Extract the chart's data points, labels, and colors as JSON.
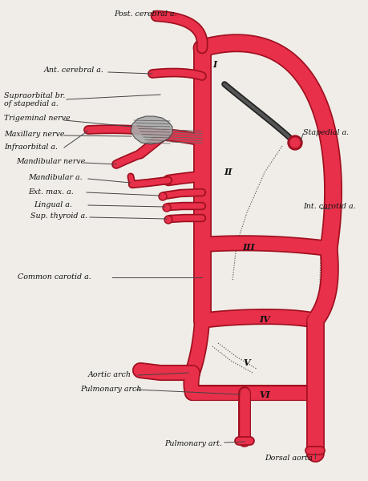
{
  "bg_color": "#f0ede8",
  "artery_color": "#e8304a",
  "artery_edge": "#a01020",
  "nerve_fill": "#999999",
  "nerve_edge": "#555555",
  "text_color": "#111111",
  "line_color": "#555555",
  "labels": {
    "post_cerebral": "Post. cerebral a.",
    "ant_cerebral": "Ant. cerebral a.",
    "supraorbital1": "Supraorbital br.",
    "supraorbital2": "of stapedial a.",
    "trigeminal": "Trigeminal nerve",
    "maxillary": "Maxillary nerve",
    "infraorbital": "Infraorbital a.",
    "mandibular_nerve": "Mandibular nerve",
    "mandibular_a": "Mandibular a.",
    "ext_max": "Ext. max. a.",
    "lingual": "Lingual a.",
    "sup_thyroid": "Sup. thyroid a.",
    "common_carotid": "Common carotid a.",
    "stapedial": "Stapedial a.",
    "int_carotid": "Int. carotid a.",
    "aortic_arch": "Aortic arch",
    "pulmonary_arch": "Pulmonary arch",
    "pulmonary_art": "Pulmonary art.",
    "dorsal_aorta": "Dorsal aorta",
    "roman_I": "I",
    "roman_II": "II",
    "roman_III": "III",
    "roman_IV": "IV",
    "roman_V": "V",
    "roman_VI": "VI"
  }
}
